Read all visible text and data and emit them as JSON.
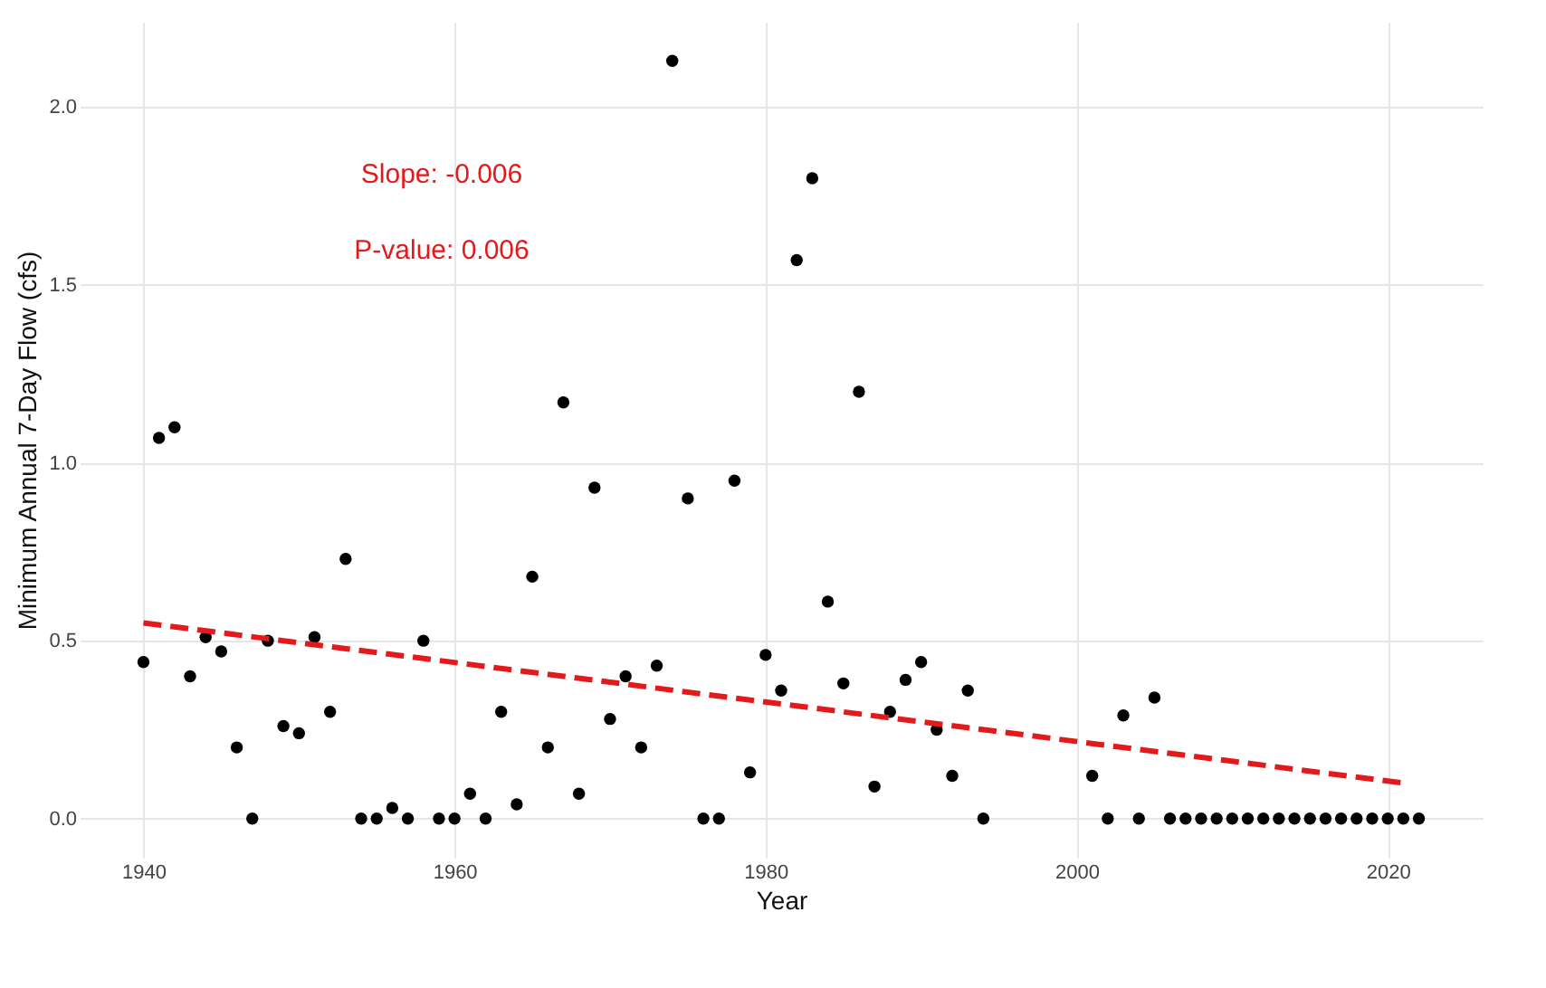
{
  "chart_data": {
    "type": "scatter",
    "xlabel": "Year",
    "ylabel": "Minimum Annual 7-Day Flow (cfs)",
    "annotations": [
      "Slope: -0.006",
      "P-value: 0.006"
    ],
    "xlim": [
      1935.9,
      2026.1
    ],
    "xticks": [
      1940,
      1960,
      1980,
      2000,
      2020
    ],
    "ylim": [
      -0.11,
      2.24
    ],
    "yticks": [
      {
        "value": 0,
        "label": "0.0"
      },
      {
        "value": 0.5,
        "label": "0.5"
      },
      {
        "value": 1,
        "label": "1.0"
      },
      {
        "value": 1.5,
        "label": "1.5"
      },
      {
        "value": 2,
        "label": "2.0"
      }
    ],
    "grid": true,
    "marker": "circle",
    "series": [
      {
        "color": "#000000",
        "x": [
          1940,
          1941,
          1942,
          1943,
          1944,
          1945,
          1946,
          1947,
          1948,
          1949,
          1950,
          1951,
          1952,
          1953,
          1954,
          1955,
          1956,
          1957,
          1958,
          1959,
          1960,
          1961,
          1962,
          1963,
          1964,
          1965,
          1966,
          1967,
          1968,
          1969,
          1970,
          1971,
          1972,
          1973,
          1974,
          1975,
          1976,
          1977,
          1978,
          1979,
          1980,
          1981,
          1982,
          1983,
          1984,
          1985,
          1986,
          1987,
          1988,
          1989,
          1990,
          1991,
          1992,
          1993,
          1994,
          2001,
          2002,
          2003,
          2004,
          2005,
          2006,
          2007,
          2008,
          2009,
          2010,
          2011,
          2012,
          2013,
          2014,
          2015,
          2016,
          2017,
          2018,
          2019,
          2020,
          2021,
          2022
        ],
        "values": [
          0.44,
          1.07,
          1.1,
          0.4,
          0.51,
          0.47,
          0.2,
          0.0,
          0.5,
          0.26,
          0.24,
          0.51,
          0.3,
          0.73,
          0.0,
          0.0,
          0.03,
          0.0,
          0.5,
          0.0,
          0.0,
          0.07,
          0.0,
          0.3,
          0.04,
          0.68,
          0.2,
          1.17,
          0.07,
          0.93,
          0.28,
          0.4,
          0.2,
          0.43,
          2.13,
          0.9,
          0.0,
          0.0,
          0.95,
          0.13,
          0.46,
          0.36,
          1.57,
          1.8,
          0.61,
          0.38,
          1.2,
          0.09,
          0.3,
          0.39,
          0.44,
          0.25,
          0.12,
          0.36,
          0.0,
          0.12,
          0.0,
          0.29,
          0.0,
          0.34,
          0,
          0,
          0,
          0,
          0,
          0,
          0,
          0,
          0,
          0,
          0,
          0,
          0,
          0,
          0,
          0,
          0
        ]
      },
      {
        "type": "line",
        "color": "#e31a1c",
        "line_style": "dashed",
        "marker": "none",
        "x": [
          1940,
          2021
        ],
        "values": [
          0.55,
          0.1
        ]
      }
    ]
  }
}
